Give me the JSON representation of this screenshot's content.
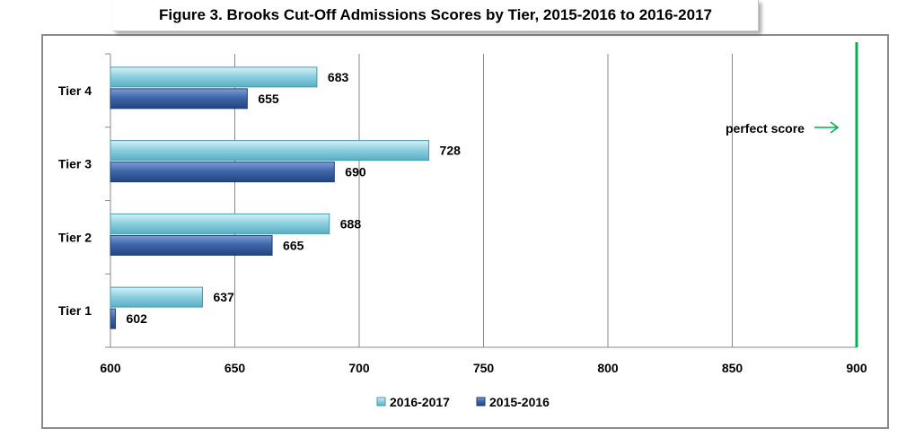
{
  "title": "Figure 3. Brooks Cut-Off Admissions Scores by Tier, 2015-2016 to 2016-2017",
  "chart_data": {
    "type": "bar",
    "orientation": "horizontal",
    "title": "Figure 3. Brooks Cut-Off Admissions Scores by Tier, 2015-2016 to 2016-2017",
    "categories": [
      "Tier 4",
      "Tier 3",
      "Tier 2",
      "Tier 1"
    ],
    "series": [
      {
        "name": "2016-2017",
        "values": [
          683,
          728,
          688,
          637
        ],
        "color": "#7cc6d8"
      },
      {
        "name": "2015-2016",
        "values": [
          655,
          690,
          665,
          602
        ],
        "color": "#3a64a6"
      }
    ],
    "xlim": [
      600,
      900
    ],
    "xticks": [
      "600",
      "650",
      "700",
      "750",
      "800",
      "850",
      "900"
    ],
    "grid": true,
    "legend_position": "bottom",
    "reference_line": {
      "value": 900,
      "label": "perfect score",
      "color": "#00b050"
    }
  }
}
